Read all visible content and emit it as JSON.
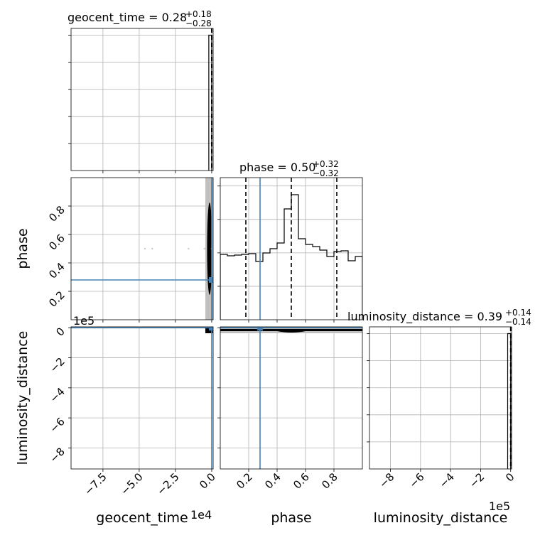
{
  "colors": {
    "truth": "#4682b4",
    "hist": "#000000",
    "quantile": "#000000",
    "grid": "#b0b0b0",
    "density_light": "#c0c0c0",
    "density_dark": "#000000"
  },
  "titles": {
    "geocent_time": {
      "prefix": "geocent_time = 0.28",
      "sup": "+0.18",
      "sub": "−0.28"
    },
    "phase": {
      "prefix": "phase = 0.50",
      "sup": "+0.32",
      "sub": "−0.32"
    },
    "luminosity_distance": {
      "prefix": "luminosity_distance = 0.39",
      "sup": "+0.14",
      "sub": "−0.14"
    }
  },
  "axis_labels": {
    "x_geocent_time": "geocent_time",
    "x_phase": "phase",
    "x_luminosity_distance": "luminosity_distance",
    "y_phase": "phase",
    "y_luminosity_distance": "luminosity_distance"
  },
  "offset_texts": {
    "x_geocent_time": "1e4",
    "x_luminosity_distance": "1e5",
    "y_luminosity_distance": "1e5"
  },
  "chart_data": {
    "type": "corner",
    "parameters": [
      "geocent_time",
      "phase",
      "luminosity_distance"
    ],
    "ranges": {
      "geocent_time": [
        -97000,
        1000
      ],
      "phase": [
        0.0,
        1.0
      ],
      "luminosity_distance": [
        -940000,
        6000
      ]
    },
    "ticks": {
      "geocent_time": {
        "values": [
          -75000,
          -50000,
          -25000,
          0
        ],
        "labels": [
          "−7.5",
          "−5.0",
          "−2.5",
          "0.0"
        ]
      },
      "phase": {
        "values": [
          0.2,
          0.4,
          0.6,
          0.8
        ],
        "labels": [
          "0.2",
          "0.4",
          "0.6",
          "0.8"
        ]
      },
      "luminosity_distance": {
        "values": [
          -800000,
          -600000,
          -400000,
          -200000,
          0
        ],
        "labels": [
          "−8",
          "−6",
          "−4",
          "−2",
          "0"
        ]
      }
    },
    "truths": {
      "geocent_time": 0.28,
      "phase": 0.28,
      "luminosity_distance": 0.39
    },
    "quantiles": {
      "geocent_time": [
        0.0,
        0.28,
        0.46
      ],
      "phase": [
        0.18,
        0.5,
        0.82
      ],
      "luminosity_distance": [
        0.25,
        0.39,
        0.53
      ]
    },
    "marginals": {
      "geocent_time": {
        "edges": [
          -2000,
          0,
          600
        ],
        "counts": [
          1.0,
          0.0
        ]
      },
      "phase": {
        "edges": [
          0.0,
          0.05,
          0.1,
          0.15,
          0.2,
          0.25,
          0.3,
          0.35,
          0.4,
          0.45,
          0.5,
          0.55,
          0.6,
          0.65,
          0.7,
          0.75,
          0.8,
          0.85,
          0.9,
          0.95,
          1.0
        ],
        "counts": [
          0.46,
          0.45,
          0.455,
          0.46,
          0.465,
          0.41,
          0.47,
          0.5,
          0.54,
          0.78,
          0.88,
          0.57,
          0.53,
          0.515,
          0.49,
          0.445,
          0.48,
          0.485,
          0.415,
          0.445
        ],
        "ylim": [
          0,
          1.0
        ]
      },
      "luminosity_distance": {
        "edges": [
          -20000,
          0,
          3000
        ],
        "counts": [
          1.0,
          0.0
        ]
      }
    },
    "scatter_outliers": {
      "geocent_time_phase": {
        "x": [
          -46000,
          -41000,
          -16000,
          -5000,
          0
        ],
        "y": [
          0.5,
          0.5,
          0.5,
          0.5,
          0.5
        ]
      }
    }
  }
}
